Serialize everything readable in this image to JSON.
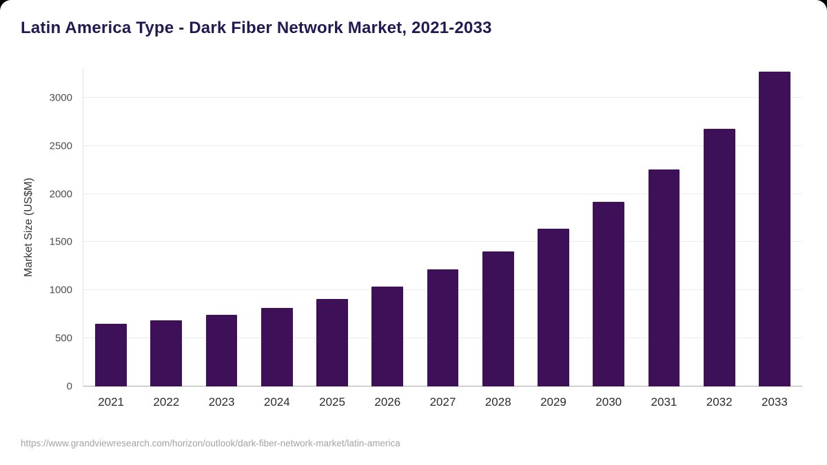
{
  "header": {
    "title": "Latin America Type - Dark Fiber Network Market, 2021-2033"
  },
  "chart_data": {
    "type": "bar",
    "title": "Latin America Type - Dark Fiber Network Market, 2021-2033",
    "xlabel": "",
    "ylabel": "Market Size (US$M)",
    "categories": [
      "2021",
      "2022",
      "2023",
      "2024",
      "2025",
      "2026",
      "2027",
      "2028",
      "2029",
      "2030",
      "2031",
      "2032",
      "2033"
    ],
    "values": [
      650,
      690,
      745,
      815,
      910,
      1040,
      1215,
      1405,
      1640,
      1915,
      2255,
      2680,
      3270
    ],
    "ylim": [
      0,
      3300
    ],
    "yticks": [
      0,
      500,
      1000,
      1500,
      2000,
      2500,
      3000
    ],
    "grid": true,
    "legend": false,
    "bar_color": "#3e1058"
  },
  "footer": {
    "source_url": "https://www.grandviewresearch.com/horizon/outlook/dark-fiber-network-market/latin-america"
  },
  "colors": {
    "bar": "#3e1058",
    "title": "#211a52",
    "grid": "#ebebeb",
    "axis": "#a8a8a8",
    "tick_label": "#4d4d4d",
    "source": "#a3a3a3",
    "page_background": "#000000",
    "card_background": "#ffffff"
  }
}
